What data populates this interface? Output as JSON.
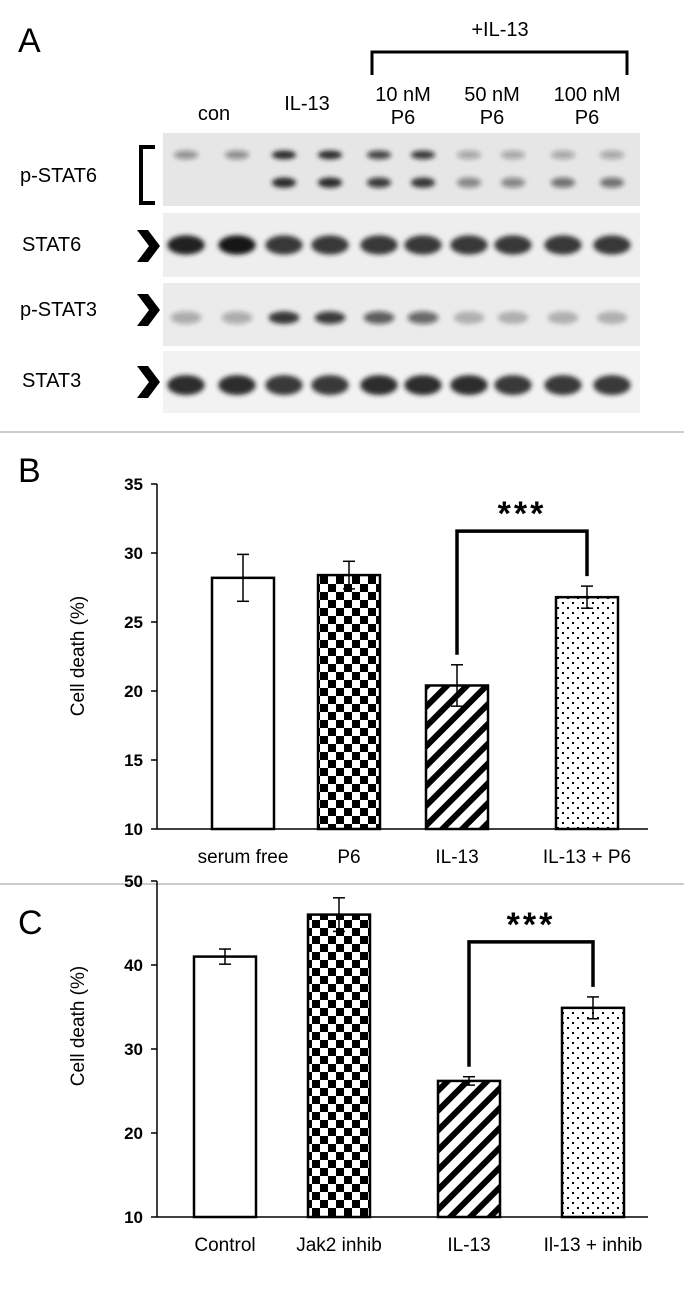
{
  "panel_a": {
    "panel_letter": "A",
    "treatment_header": "+IL-13",
    "lane_groups": [
      {
        "label": "con"
      },
      {
        "label": "IL-13"
      },
      {
        "label_line1": "10 nM",
        "label_line2": "P6"
      },
      {
        "label_line1": "50 nM",
        "label_line2": "P6"
      },
      {
        "label_line1": "100 nM",
        "label_line2": "P6"
      }
    ],
    "blots": [
      {
        "label": "p-STAT6",
        "marker": "bracket",
        "bands": [
          {
            "y": 0.3,
            "w": 0.55,
            "h": 0.12,
            "intensities": [
              0.4,
              0.42,
              0.9,
              0.9,
              0.75,
              0.8,
              0.3,
              0.3,
              0.3,
              0.3
            ]
          },
          {
            "y": 0.68,
            "w": 0.55,
            "h": 0.14,
            "intensities": [
              0.0,
              0.0,
              0.9,
              0.9,
              0.8,
              0.85,
              0.45,
              0.45,
              0.55,
              0.55
            ]
          }
        ]
      },
      {
        "label": "STAT6",
        "marker": "arrow",
        "bands": [
          {
            "y": 0.5,
            "w": 0.85,
            "h": 0.3,
            "intensities": [
              0.95,
              1.0,
              0.85,
              0.85,
              0.85,
              0.85,
              0.85,
              0.85,
              0.85,
              0.85
            ]
          }
        ]
      },
      {
        "label": "p-STAT3",
        "marker": "arrow",
        "bands": [
          {
            "y": 0.55,
            "w": 0.7,
            "h": 0.2,
            "intensities": [
              0.3,
              0.3,
              0.85,
              0.8,
              0.65,
              0.6,
              0.25,
              0.25,
              0.25,
              0.25
            ]
          }
        ]
      },
      {
        "label": "STAT3",
        "marker": "arrow",
        "bands": [
          {
            "y": 0.55,
            "w": 0.85,
            "h": 0.32,
            "intensities": [
              0.9,
              0.9,
              0.85,
              0.85,
              0.9,
              0.9,
              0.9,
              0.85,
              0.85,
              0.85
            ]
          }
        ]
      }
    ]
  },
  "chart_data": [
    {
      "panel_letter": "B",
      "type": "bar",
      "title": "",
      "xlabel": "",
      "ylabel": "Cell death (%)",
      "ylim": [
        10,
        35
      ],
      "yticks": [
        10,
        15,
        20,
        25,
        30,
        35
      ],
      "categories": [
        "serum free",
        "P6",
        "IL-13",
        "IL-13 + P6"
      ],
      "values": [
        28.2,
        28.4,
        20.4,
        26.8
      ],
      "errors": [
        1.7,
        1.0,
        1.5,
        0.8
      ],
      "patterns": [
        "white",
        "checker",
        "diagonal",
        "dots"
      ],
      "significance": {
        "from": 2,
        "to": 3,
        "label": "***"
      },
      "grid": false
    },
    {
      "panel_letter": "C",
      "type": "bar",
      "title": "",
      "xlabel": "",
      "ylabel": "Cell death (%)",
      "ylim": [
        10,
        50
      ],
      "yticks": [
        10,
        20,
        30,
        40,
        50
      ],
      "categories": [
        "Control",
        "Jak2 inhib",
        "IL-13",
        "Il-13 + inhib"
      ],
      "values": [
        41.0,
        46.0,
        26.2,
        34.9
      ],
      "errors": [
        0.9,
        2.0,
        0.5,
        1.3
      ],
      "patterns": [
        "white",
        "checker",
        "diagonal",
        "dots"
      ],
      "significance": {
        "from": 2,
        "to": 3,
        "label": "***"
      },
      "grid": false
    }
  ]
}
